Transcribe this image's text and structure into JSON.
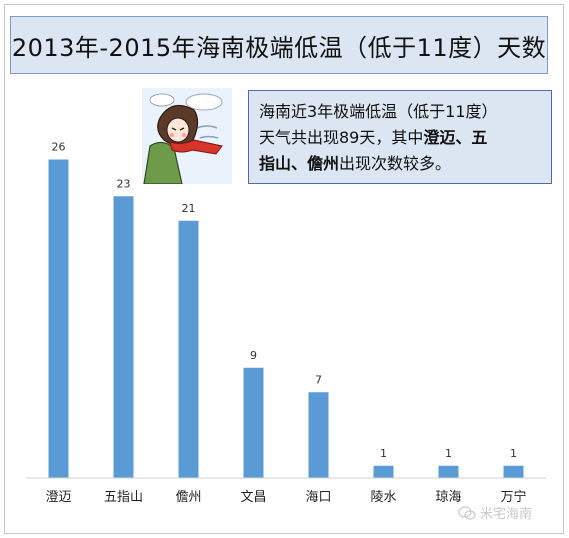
{
  "chart_data": {
    "type": "bar",
    "title": "2013年-2015年海南极端低温（低于11度）天数",
    "categories": [
      "澄迈",
      "五指山",
      "儋州",
      "文昌",
      "海口",
      "陵水",
      "琼海",
      "万宁"
    ],
    "values": [
      26,
      23,
      21,
      9,
      7,
      1,
      1,
      1
    ],
    "ylim": [
      0,
      28
    ],
    "grid": false,
    "bar_color": "#5b9bd5"
  },
  "callout": {
    "line1": "海南近3年极端低温（低于11度）",
    "line2_pre": "天气共出现89天，其中",
    "line2_bold": "澄迈、五",
    "line3_bold": "指山、儋州",
    "line3_post": "出现次数较多。"
  },
  "watermark": "米宅海南",
  "colors": {
    "title_bg": "#dce6f2",
    "bar": "#5b9bd5"
  }
}
